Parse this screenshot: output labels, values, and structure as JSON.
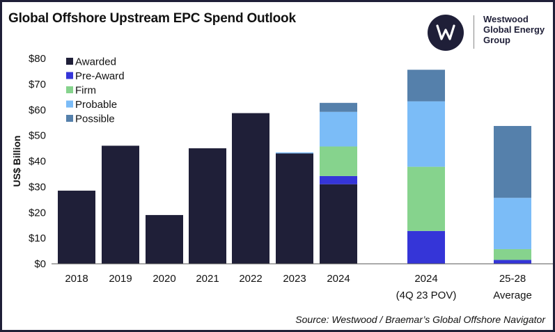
{
  "header": {
    "title": "Global Offshore Upstream EPC Spend Outlook"
  },
  "logo": {
    "icon": "westwood-w-logo",
    "line1": "Westwood",
    "line2": "Global Energy",
    "line3": "Group"
  },
  "footer": {
    "source": "Source: Westwood / Braemar’s Global Offshore Navigator"
  },
  "colors": {
    "Awarded": "#1f1f38",
    "Pre-Award": "#3535d8",
    "Firm": "#86d38d",
    "Probable": "#7bbcf7",
    "Possible": "#5580ab"
  },
  "chart_data": {
    "type": "bar",
    "stacked": true,
    "title": "Global Offshore Upstream EPC Spend Outlook",
    "xlabel": "",
    "ylabel": "US$ Billion",
    "ylim": [
      0,
      80
    ],
    "yticks": [
      "$0",
      "$10",
      "$20",
      "$30",
      "$40",
      "$50",
      "$60",
      "$70",
      "$80"
    ],
    "grid": false,
    "legend_position": "top-left",
    "categories": [
      "2018",
      "2019",
      "2020",
      "2021",
      "2022",
      "2023",
      "2024",
      "2024 (4Q 23 POV)",
      "25-28 Average"
    ],
    "category_labels": [
      [
        "2018"
      ],
      [
        "2019"
      ],
      [
        "2020"
      ],
      [
        "2021"
      ],
      [
        "2022"
      ],
      [
        "2023"
      ],
      [
        "2024"
      ],
      [
        "2024",
        "(4Q 23 POV)"
      ],
      [
        "25-28",
        "Average"
      ]
    ],
    "series": [
      {
        "name": "Awarded",
        "values": [
          28.5,
          46,
          19,
          45,
          58.7,
          43,
          31,
          0,
          0
        ]
      },
      {
        "name": "Pre-Award",
        "values": [
          0,
          0,
          0,
          0,
          0,
          0,
          3.2,
          12.8,
          1.5
        ]
      },
      {
        "name": "Firm",
        "values": [
          0,
          0,
          0,
          0,
          0,
          0,
          11.5,
          25,
          4.2
        ]
      },
      {
        "name": "Probable",
        "values": [
          0,
          0,
          0,
          0,
          0,
          0.4,
          13.5,
          25.5,
          20
        ]
      },
      {
        "name": "Possible",
        "values": [
          0,
          0,
          0,
          0,
          0,
          0,
          3.5,
          12.3,
          28
        ]
      }
    ]
  }
}
